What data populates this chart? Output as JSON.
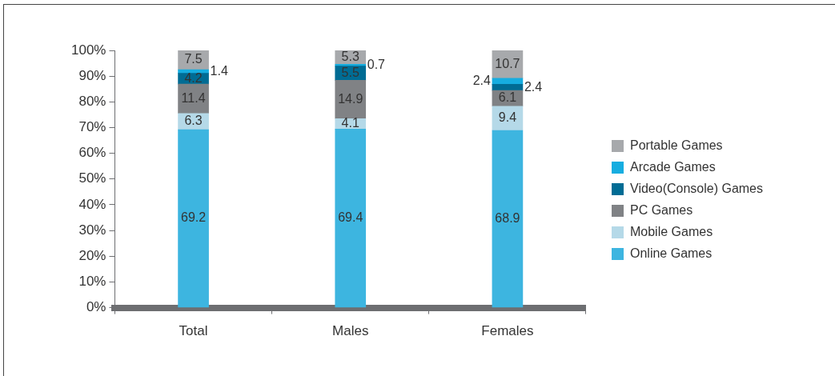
{
  "chart_data": {
    "type": "bar",
    "stacked": true,
    "categories": [
      "Total",
      "Males",
      "Females"
    ],
    "series": [
      {
        "name": "Online Games",
        "color": "#3db5e0",
        "values": [
          69.2,
          69.4,
          68.9
        ]
      },
      {
        "name": "Mobile Games",
        "color": "#b5d9e8",
        "values": [
          6.3,
          4.1,
          9.4
        ]
      },
      {
        "name": "PC Games",
        "color": "#808285",
        "values": [
          11.4,
          14.9,
          6.1
        ]
      },
      {
        "name": "Video(Console) Games",
        "color": "#006c94",
        "values": [
          4.2,
          5.5,
          2.4
        ]
      },
      {
        "name": "Arcade Games",
        "color": "#16ade0",
        "values": [
          1.4,
          0.7,
          2.4
        ]
      },
      {
        "name": "Portable Games",
        "color": "#a7a9ac",
        "values": [
          7.5,
          5.3,
          10.7
        ]
      }
    ],
    "ylim": [
      0,
      100
    ],
    "yticks": [
      {
        "value": 0,
        "label": "0%"
      },
      {
        "value": 10,
        "label": "10%"
      },
      {
        "value": 20,
        "label": "20%"
      },
      {
        "value": 30,
        "label": "30%"
      },
      {
        "value": 40,
        "label": "40%"
      },
      {
        "value": 50,
        "label": "50%"
      },
      {
        "value": 60,
        "label": "60%"
      },
      {
        "value": 70,
        "label": "70%"
      },
      {
        "value": 80,
        "label": "80%"
      },
      {
        "value": 90,
        "label": "90%"
      },
      {
        "value": 100,
        "label": "100%"
      }
    ],
    "legend": "right",
    "data_labels": true
  }
}
